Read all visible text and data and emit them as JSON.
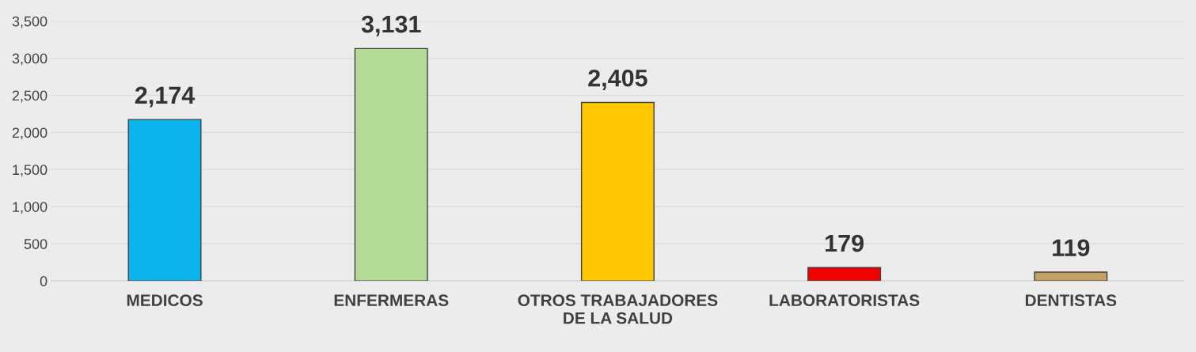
{
  "chart_data": {
    "type": "bar",
    "categories": [
      "MEDICOS",
      "ENFERMERAS",
      "OTROS TRABAJADORES\nDE LA SALUD",
      "LABORATORISTAS",
      "DENTISTAS"
    ],
    "values": [
      2174,
      3131,
      2405,
      179,
      119
    ],
    "colors": [
      "#0ab4ee",
      "#b3db95",
      "#ffc800",
      "#f20000",
      "#c4a165"
    ],
    "value_labels": [
      "2,174",
      "3,131",
      "2,405",
      "179",
      "119"
    ],
    "ylim": [
      0,
      3500
    ],
    "yticks": [
      0,
      {
        "value": 500,
        "label": "500"
      },
      {
        "value": 1000,
        "label": "1,000"
      },
      {
        "value": 1500,
        "label": "1,500"
      },
      {
        "value": 2000,
        "label": "2,000"
      },
      {
        "value": 2500,
        "label": "2,500"
      },
      {
        "value": 3000,
        "label": "3,000"
      },
      {
        "value": 3500,
        "label": "3,500"
      }
    ],
    "grid": "y"
  }
}
